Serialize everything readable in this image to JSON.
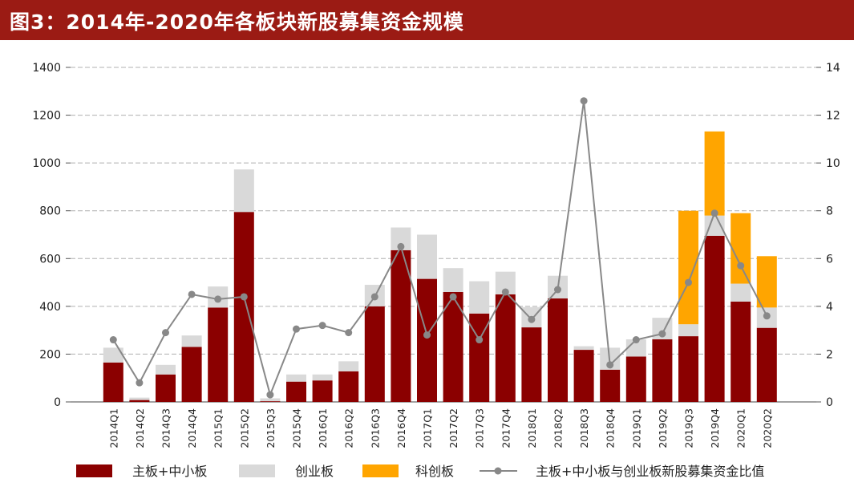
{
  "title": "图3：2014年-2020年各板块新股募集资金规模",
  "colors": {
    "title_bg": "#9b1b14",
    "main": "#8b0000",
    "chinext": "#d9d9d9",
    "star": "#ffa500",
    "ratio": "#888888"
  },
  "chart_data": {
    "type": "bar",
    "stacked": true,
    "categories": [
      "2014Q1",
      "2014Q2",
      "2014Q3",
      "2014Q4",
      "2015Q1",
      "2015Q2",
      "2015Q3",
      "2015Q4",
      "2016Q1",
      "2016Q2",
      "2016Q3",
      "2016Q4",
      "2017Q1",
      "2017Q2",
      "2017Q3",
      "2017Q4",
      "2018Q1",
      "2018Q2",
      "2018Q3",
      "2018Q4",
      "2019Q1",
      "2019Q2",
      "2019Q3",
      "2019Q4",
      "2020Q1",
      "2020Q2"
    ],
    "series": [
      {
        "name": "主板+中小板",
        "kind": "bar",
        "axis": "left",
        "color": "#8b0000",
        "values": [
          165,
          8,
          115,
          230,
          395,
          795,
          3,
          85,
          90,
          128,
          400,
          635,
          515,
          460,
          370,
          450,
          312,
          433,
          218,
          135,
          190,
          262,
          275,
          695,
          420,
          310
        ]
      },
      {
        "name": "创业板",
        "kind": "bar",
        "axis": "left",
        "color": "#d9d9d9",
        "values": [
          62,
          10,
          40,
          48,
          88,
          178,
          12,
          30,
          25,
          42,
          90,
          95,
          185,
          100,
          135,
          95,
          85,
          95,
          15,
          92,
          72,
          90,
          50,
          85,
          75,
          85
        ]
      },
      {
        "name": "科创板",
        "kind": "bar",
        "axis": "left",
        "color": "#ffa500",
        "values": [
          0,
          0,
          0,
          0,
          0,
          0,
          0,
          0,
          0,
          0,
          0,
          0,
          0,
          0,
          0,
          0,
          0,
          0,
          0,
          0,
          0,
          0,
          475,
          352,
          295,
          215
        ]
      },
      {
        "name": "主板+中小板与创业板新股募集资金比值",
        "kind": "line",
        "axis": "right",
        "color": "#888888",
        "values": [
          2.6,
          0.8,
          2.9,
          4.5,
          4.3,
          4.4,
          0.3,
          3.05,
          3.2,
          2.9,
          4.4,
          6.5,
          2.8,
          4.4,
          2.6,
          4.6,
          3.45,
          4.7,
          12.6,
          1.55,
          2.6,
          2.85,
          5.0,
          7.9,
          5.7,
          3.6
        ]
      }
    ],
    "y_left": {
      "min": 0,
      "max": 1400,
      "ticks": [
        0,
        200,
        400,
        600,
        800,
        1000,
        1200,
        1400
      ]
    },
    "y_right": {
      "min": 0,
      "max": 14,
      "ticks": [
        0,
        2,
        4,
        6,
        8,
        10,
        12,
        14
      ]
    },
    "grid": true,
    "legend_position": "bottom"
  }
}
